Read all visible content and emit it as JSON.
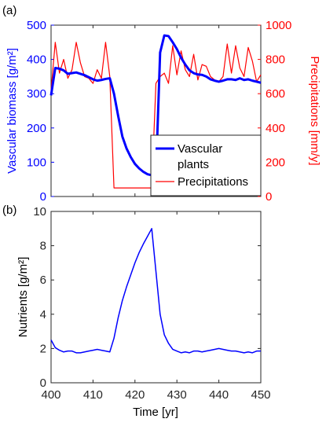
{
  "chart_data": [
    {
      "type": "line",
      "panel_label": "(a)",
      "x": [
        400,
        401,
        402,
        403,
        404,
        405,
        406,
        407,
        408,
        409,
        410,
        411,
        412,
        413,
        414,
        415,
        416,
        417,
        418,
        419,
        420,
        421,
        422,
        423,
        424,
        425,
        426,
        427,
        428,
        429,
        430,
        431,
        432,
        433,
        434,
        435,
        436,
        437,
        438,
        439,
        440,
        441,
        442,
        443,
        444,
        445,
        446,
        447,
        448,
        449,
        450
      ],
      "xlim": [
        400,
        450
      ],
      "x_ticks": [
        "400",
        "410",
        "420",
        "430",
        "440",
        "450"
      ],
      "left_axis": {
        "label": "Vascular biomass [g/m²]",
        "ylim": [
          0,
          500
        ],
        "ticks": [
          "0",
          "100",
          "200",
          "300",
          "400",
          "500"
        ],
        "color": "#0000ff"
      },
      "right_axis": {
        "label": "Precipitations [mm/y]",
        "ylim": [
          0,
          1000
        ],
        "ticks": [
          "0",
          "200",
          "400",
          "600",
          "800",
          "1000"
        ],
        "color": "#ff0000"
      },
      "series": [
        {
          "name": "Vascular plants",
          "axis": "left",
          "color": "#0000ff",
          "values": [
            295,
            375,
            373,
            368,
            358,
            360,
            362,
            358,
            354,
            348,
            342,
            338,
            340,
            343,
            345,
            300,
            235,
            175,
            140,
            115,
            95,
            82,
            72,
            65,
            62,
            60,
            420,
            470,
            468,
            450,
            430,
            405,
            385,
            368,
            360,
            356,
            355,
            350,
            342,
            338,
            335,
            338,
            342,
            342,
            340,
            345,
            340,
            342,
            338,
            335,
            332
          ]
        },
        {
          "name": "Precipitations",
          "axis": "right",
          "color": "#ff0000",
          "values": [
            620,
            900,
            720,
            800,
            690,
            740,
            900,
            780,
            700,
            690,
            660,
            740,
            690,
            900,
            700,
            50,
            50,
            50,
            50,
            50,
            50,
            50,
            50,
            50,
            50,
            660,
            700,
            720,
            660,
            880,
            710,
            850,
            740,
            700,
            830,
            680,
            770,
            760,
            700,
            680,
            670,
            700,
            890,
            720,
            880,
            750,
            700,
            870,
            790,
            670,
            710
          ]
        }
      ],
      "legend": {
        "position": "bottom-right",
        "entries": [
          "Vascular plants",
          "Precipitations"
        ],
        "label_lines": [
          [
            "Vascular",
            "plants"
          ],
          [
            "Precipitations"
          ]
        ]
      }
    },
    {
      "type": "line",
      "panel_label": "(b)",
      "x": [
        400,
        401,
        402,
        403,
        404,
        405,
        406,
        407,
        408,
        409,
        410,
        411,
        412,
        413,
        414,
        415,
        416,
        417,
        418,
        419,
        420,
        421,
        422,
        423,
        424,
        425,
        426,
        427,
        428,
        429,
        430,
        431,
        432,
        433,
        434,
        435,
        436,
        437,
        438,
        439,
        440,
        441,
        442,
        443,
        444,
        445,
        446,
        447,
        448,
        449,
        450
      ],
      "xlim": [
        400,
        450
      ],
      "x_ticks": [
        "400",
        "410",
        "420",
        "430",
        "440",
        "450"
      ],
      "xlabel": "Time [yr]",
      "ylabel": "Nutrients [g/m²]",
      "ylim": [
        0,
        10
      ],
      "y_ticks": [
        "0",
        "2",
        "4",
        "6",
        "8",
        "10"
      ],
      "series": [
        {
          "color": "#0000ff",
          "values": [
            2.5,
            2.05,
            1.9,
            1.8,
            1.85,
            1.85,
            1.75,
            1.75,
            1.8,
            1.85,
            1.9,
            1.95,
            1.9,
            1.85,
            1.8,
            2.6,
            3.8,
            4.8,
            5.6,
            6.3,
            7.0,
            7.6,
            8.1,
            8.55,
            9.0,
            6.5,
            4.0,
            2.8,
            2.3,
            1.95,
            1.85,
            1.75,
            1.8,
            1.75,
            1.85,
            1.85,
            1.8,
            1.85,
            1.9,
            1.95,
            2.0,
            1.95,
            1.9,
            1.85,
            1.85,
            1.8,
            1.75,
            1.8,
            1.75,
            1.85,
            1.85
          ]
        }
      ]
    }
  ]
}
